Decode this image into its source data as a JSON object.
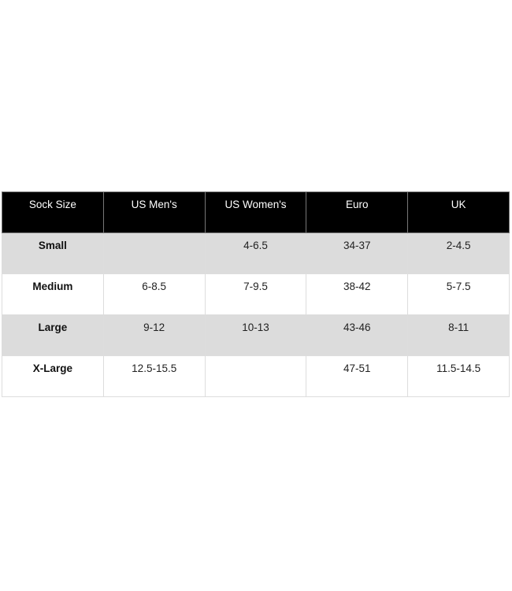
{
  "table": {
    "headers": [
      "Sock Size",
      "US Men's",
      "US Women's",
      "Euro",
      "UK"
    ],
    "rows": [
      [
        "Small",
        "",
        "4-6.5",
        "34-37",
        "2-4.5"
      ],
      [
        "Medium",
        "6-8.5",
        "7-9.5",
        "38-42",
        "5-7.5"
      ],
      [
        "Large",
        "9-12",
        "10-13",
        "43-46",
        "8-11"
      ],
      [
        "X-Large",
        "12.5-15.5",
        "",
        "47-51",
        "11.5-14.5"
      ]
    ]
  },
  "colors": {
    "header_bg": "#000000",
    "striped_row_bg": "#dcdcdc"
  }
}
